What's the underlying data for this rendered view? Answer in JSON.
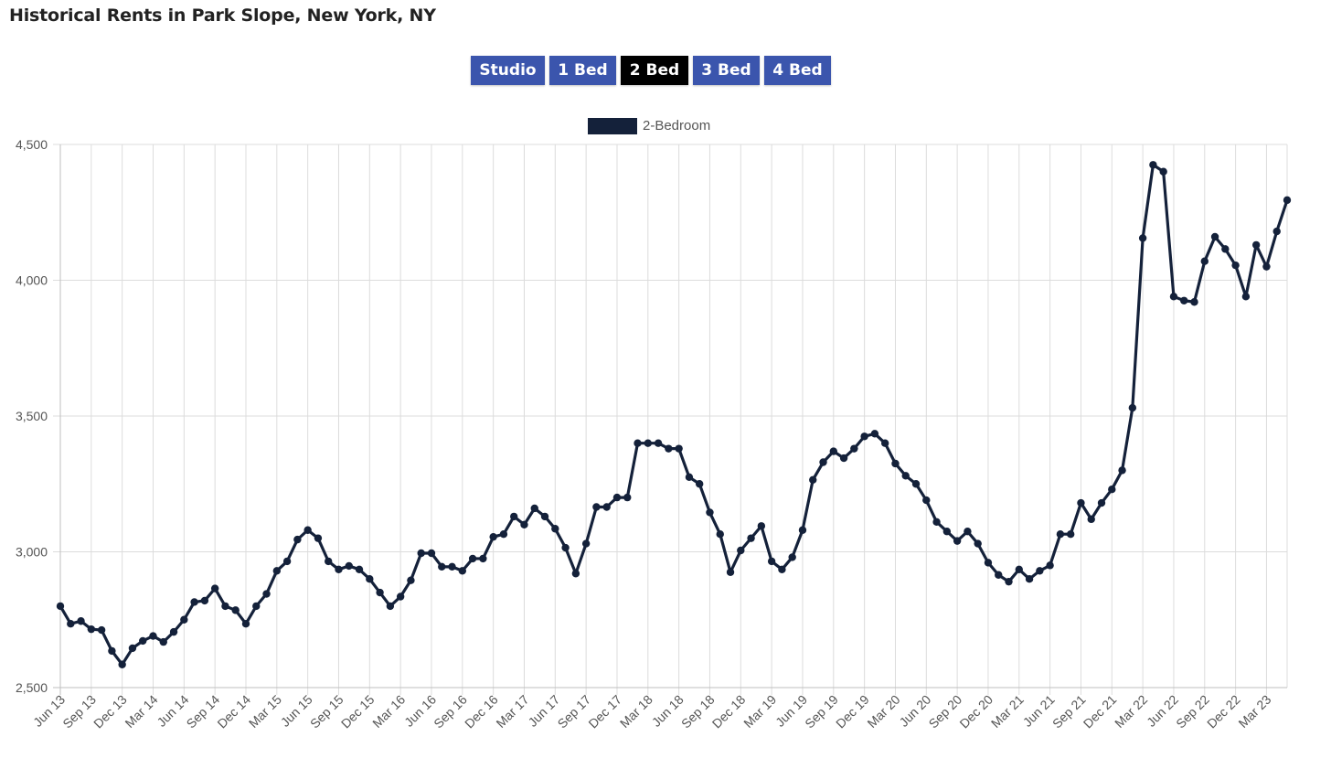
{
  "title": "Historical Rents in Park Slope, New York, NY",
  "buttons": [
    {
      "label": "Studio",
      "active": false
    },
    {
      "label": "1 Bed",
      "active": false
    },
    {
      "label": "2 Bed",
      "active": true
    },
    {
      "label": "3 Bed",
      "active": false
    },
    {
      "label": "4 Bed",
      "active": false
    }
  ],
  "colors": {
    "button_bg": "#3b55ad",
    "button_active_bg": "#000000",
    "line": "#14213a",
    "grid": "#dcdcdc"
  },
  "chart_data": {
    "type": "line",
    "title": "",
    "xlabel": "",
    "ylabel": "",
    "ylim": [
      2500,
      4500
    ],
    "yticks": [
      2500,
      3000,
      3500,
      4000,
      4500
    ],
    "ytick_labels": [
      "2,500",
      "3,000",
      "3,500",
      "4,000",
      "4,500"
    ],
    "grid": true,
    "legend_position": "top-center",
    "x_tick_labels": [
      "Jun 13",
      "Sep 13",
      "Dec 13",
      "Mar 14",
      "Jun 14",
      "Sep 14",
      "Dec 14",
      "Mar 15",
      "Jun 15",
      "Sep 15",
      "Dec 15",
      "Mar 16",
      "Jun 16",
      "Sep 16",
      "Dec 16",
      "Mar 17",
      "Jun 17",
      "Sep 17",
      "Dec 17",
      "Mar 18",
      "Jun 18",
      "Sep 18",
      "Dec 18",
      "Mar 19",
      "Jun 19",
      "Sep 19",
      "Dec 19",
      "Mar 20",
      "Jun 20",
      "Sep 20",
      "Dec 20",
      "Mar 21",
      "Jun 21",
      "Sep 21",
      "Dec 21",
      "Mar 22",
      "Jun 22",
      "Sep 22",
      "Dec 22",
      "Mar 23"
    ],
    "x_start": "Jun 13",
    "x_interval": "month",
    "series": [
      {
        "name": "2-Bedroom",
        "color": "#14213a",
        "values": [
          2800,
          2735,
          2745,
          2715,
          2712,
          2635,
          2585,
          2645,
          2672,
          2690,
          2668,
          2705,
          2750,
          2815,
          2820,
          2865,
          2800,
          2785,
          2735,
          2800,
          2845,
          2930,
          2965,
          3045,
          3080,
          3050,
          2965,
          2935,
          2948,
          2935,
          2900,
          2850,
          2800,
          2835,
          2895,
          2995,
          2995,
          2945,
          2945,
          2930,
          2975,
          2975,
          3055,
          3065,
          3130,
          3100,
          3160,
          3130,
          3085,
          3015,
          2920,
          3030,
          3165,
          3165,
          3200,
          3200,
          3400,
          3400,
          3400,
          3380,
          3380,
          3275,
          3250,
          3145,
          3065,
          2925,
          3005,
          3050,
          3095,
          2965,
          2935,
          2980,
          3080,
          3265,
          3330,
          3370,
          3345,
          3380,
          3425,
          3435,
          3400,
          3325,
          3280,
          3250,
          3190,
          3110,
          3075,
          3040,
          3075,
          3030,
          2960,
          2915,
          2890,
          2935,
          2900,
          2930,
          2950,
          3065,
          3065,
          3180,
          3120,
          3180,
          3230,
          3300,
          3530,
          4155,
          4425,
          4400,
          3940,
          3925,
          3920,
          4070,
          4160,
          4115,
          4055,
          3940,
          4130,
          4050,
          4180,
          4295
        ]
      }
    ]
  }
}
